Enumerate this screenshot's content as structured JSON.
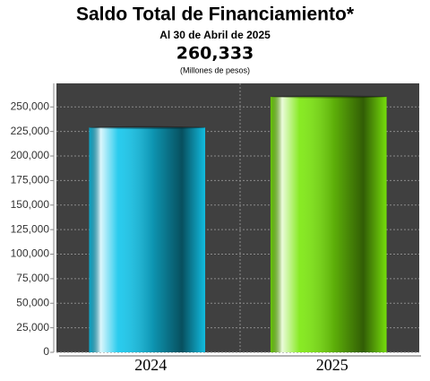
{
  "header": {
    "title": "Saldo Total de Financiamiento*",
    "subtitle": "Al 30 de Abril de 2025",
    "total": "260,333",
    "unit_note": "(Millones de pesos)"
  },
  "chart_data": {
    "type": "bar",
    "categories": [
      "2024",
      "2025"
    ],
    "values": [
      229000,
      260333
    ],
    "colors": [
      "#12c6ec",
      "#7be80c"
    ],
    "ylim": [
      0,
      274000
    ],
    "yticks": [
      0,
      {
        "value": 25000,
        "label": "25,000"
      },
      {
        "value": 50000,
        "label": "50,000"
      },
      {
        "value": 75000,
        "label": "75,000"
      },
      {
        "value": 100000,
        "label": "100,000"
      },
      {
        "value": 125000,
        "label": "125,000"
      },
      {
        "value": 150000,
        "label": "150,000"
      },
      {
        "value": 175000,
        "label": "175,000"
      },
      {
        "value": 200000,
        "label": "200,000"
      },
      {
        "value": 225000,
        "label": "225,000"
      },
      {
        "value": 250000,
        "label": "250,000"
      }
    ],
    "grid": true
  }
}
